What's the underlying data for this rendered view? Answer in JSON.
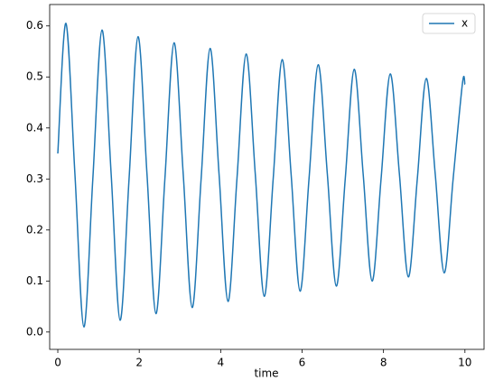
{
  "chart_data": {
    "type": "line",
    "xlabel": "time",
    "x": [
      0,
      0.2,
      0.42,
      0.64,
      0.86,
      1.085,
      1.31,
      1.53,
      1.75,
      1.97,
      2.19,
      2.41,
      2.63,
      2.855,
      3.08,
      3.3,
      3.52,
      3.74,
      3.96,
      4.18,
      4.4,
      4.625,
      4.85,
      5.07,
      5.29,
      5.51,
      5.73,
      5.95,
      6.17,
      6.395,
      6.62,
      6.84,
      7.06,
      7.28,
      7.5,
      7.72,
      7.94,
      8.165,
      8.39,
      8.61,
      8.83,
      9.05,
      9.27,
      9.49,
      9.71,
      9.94,
      10.0
    ],
    "series": [
      {
        "name": "x",
        "color": "#1f77b4",
        "values": [
          0.35,
          0.605,
          0.31,
          0.01,
          0.3,
          0.592,
          0.31,
          0.023,
          0.3,
          0.579,
          0.31,
          0.036,
          0.3,
          0.567,
          0.31,
          0.048,
          0.3,
          0.556,
          0.31,
          0.06,
          0.3,
          0.545,
          0.31,
          0.07,
          0.3,
          0.534,
          0.31,
          0.08,
          0.3,
          0.524,
          0.31,
          0.09,
          0.3,
          0.515,
          0.31,
          0.1,
          0.3,
          0.506,
          0.31,
          0.108,
          0.3,
          0.497,
          0.31,
          0.116,
          0.3,
          0.488,
          0.485
        ]
      }
    ],
    "xlim": [
      -0.2,
      10.47
    ],
    "ylim": [
      -0.034,
      0.642
    ],
    "xticks": [
      0,
      2,
      4,
      6,
      8,
      10
    ],
    "yticks": [
      {
        "value": 0,
        "label": "0.0"
      },
      0.1,
      0.2,
      0.3,
      0.4,
      0.5,
      0.6
    ],
    "legend": "upper right"
  }
}
